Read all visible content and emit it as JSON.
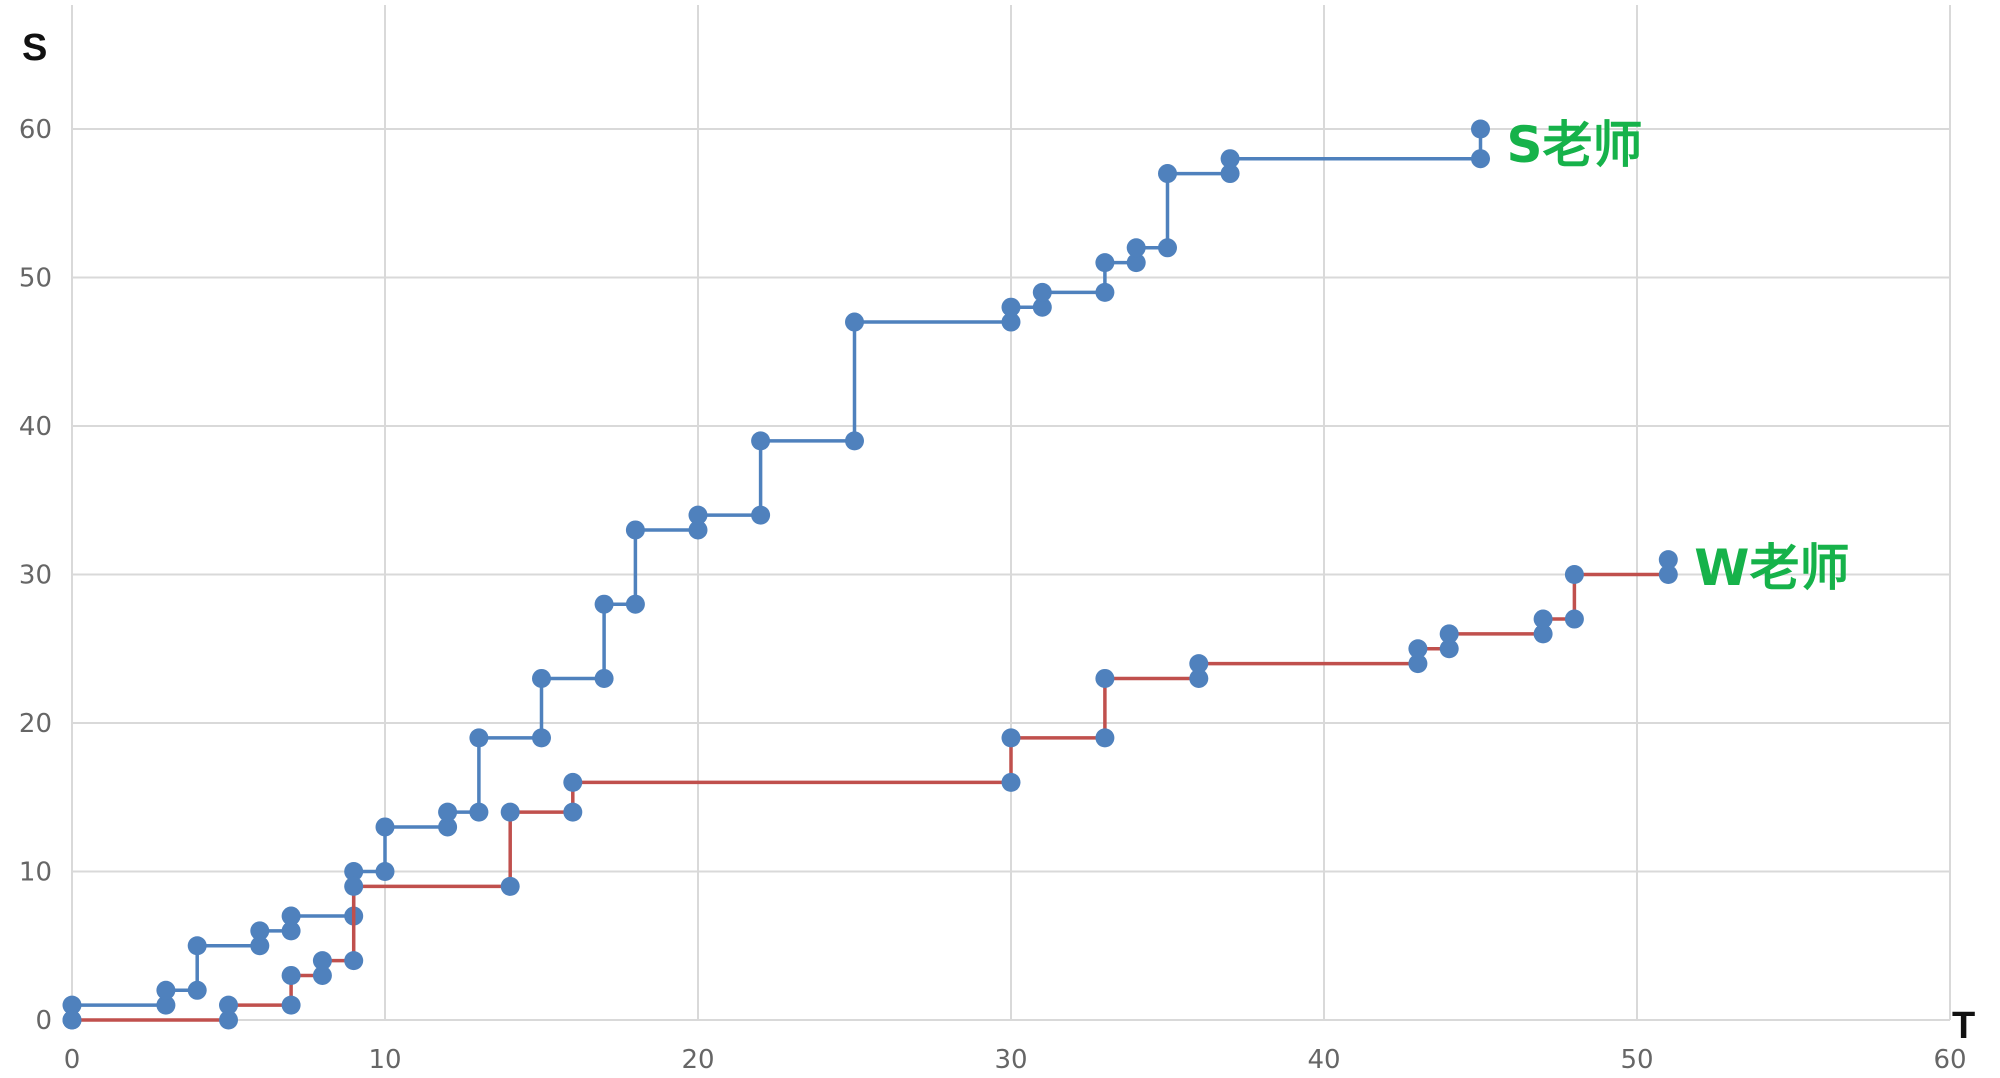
{
  "chart_data": {
    "type": "line",
    "step": true,
    "xlabel": "T",
    "ylabel": "S",
    "xlim": [
      0,
      60
    ],
    "ylim": [
      0,
      60
    ],
    "xticks": [
      0,
      10,
      20,
      30,
      40,
      50,
      60
    ],
    "yticks": [
      0,
      10,
      20,
      30,
      40,
      50,
      60
    ],
    "grid": true,
    "series": [
      {
        "name": "S老师",
        "color": "#4F81BD",
        "label_color": "#16B24A",
        "points": [
          [
            0,
            0
          ],
          [
            0,
            1
          ],
          [
            3,
            1
          ],
          [
            3,
            2
          ],
          [
            4,
            2
          ],
          [
            4,
            5
          ],
          [
            6,
            5
          ],
          [
            6,
            6
          ],
          [
            7,
            6
          ],
          [
            7,
            7
          ],
          [
            9,
            7
          ],
          [
            9,
            10
          ],
          [
            10,
            10
          ],
          [
            10,
            13
          ],
          [
            12,
            13
          ],
          [
            12,
            14
          ],
          [
            13,
            14
          ],
          [
            13,
            19
          ],
          [
            15,
            19
          ],
          [
            15,
            23
          ],
          [
            17,
            23
          ],
          [
            17,
            28
          ],
          [
            18,
            28
          ],
          [
            18,
            33
          ],
          [
            20,
            33
          ],
          [
            20,
            34
          ],
          [
            22,
            34
          ],
          [
            22,
            39
          ],
          [
            25,
            39
          ],
          [
            25,
            47
          ],
          [
            30,
            47
          ],
          [
            30,
            48
          ],
          [
            31,
            48
          ],
          [
            31,
            49
          ],
          [
            33,
            49
          ],
          [
            33,
            51
          ],
          [
            34,
            51
          ],
          [
            34,
            52
          ],
          [
            35,
            52
          ],
          [
            35,
            57
          ],
          [
            37,
            57
          ],
          [
            37,
            58
          ],
          [
            45,
            58
          ],
          [
            45,
            60
          ]
        ]
      },
      {
        "name": "W老师",
        "color": "#C0504D",
        "marker_color": "#4F81BD",
        "label_color": "#16B24A",
        "points": [
          [
            0,
            0
          ],
          [
            5,
            0
          ],
          [
            5,
            1
          ],
          [
            7,
            1
          ],
          [
            7,
            3
          ],
          [
            8,
            3
          ],
          [
            8,
            4
          ],
          [
            9,
            4
          ],
          [
            9,
            9
          ],
          [
            14,
            9
          ],
          [
            14,
            14
          ],
          [
            16,
            14
          ],
          [
            16,
            16
          ],
          [
            30,
            16
          ],
          [
            30,
            19
          ],
          [
            33,
            19
          ],
          [
            33,
            23
          ],
          [
            36,
            23
          ],
          [
            36,
            24
          ],
          [
            43,
            24
          ],
          [
            43,
            25
          ],
          [
            44,
            25
          ],
          [
            44,
            26
          ],
          [
            47,
            26
          ],
          [
            47,
            27
          ],
          [
            48,
            27
          ],
          [
            48,
            30
          ],
          [
            51,
            30
          ],
          [
            51,
            31
          ]
        ]
      }
    ]
  }
}
